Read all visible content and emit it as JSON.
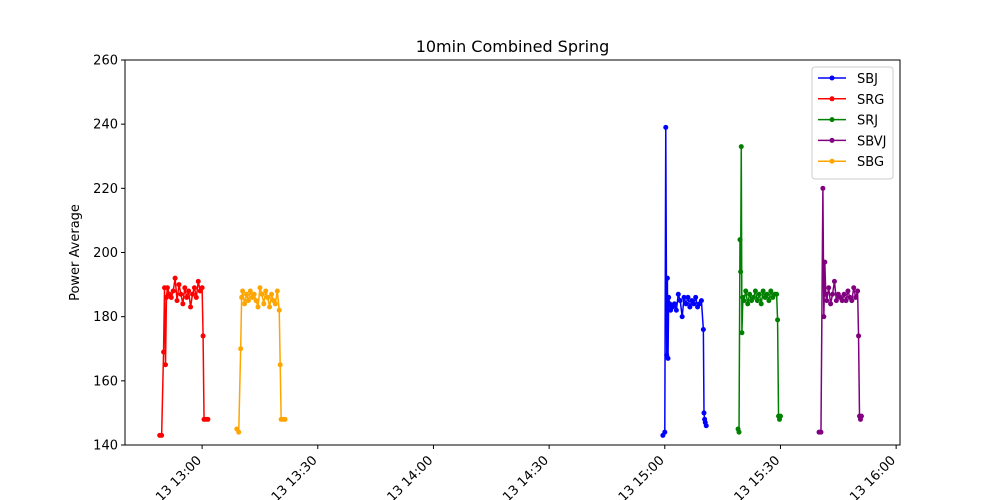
{
  "chart_data": {
    "type": "line",
    "title": "10min Combined Spring",
    "xlabel": "",
    "ylabel": "Power Average",
    "ylim": [
      140,
      260
    ],
    "xlim": [
      "2024-05-13 12:40",
      "2024-05-13 16:01"
    ],
    "yticks": [
      140,
      160,
      180,
      200,
      220,
      240,
      260
    ],
    "xticks": [
      {
        "t": "13:00",
        "label": "13 13:00"
      },
      {
        "t": "13:30",
        "label": "13 13:30"
      },
      {
        "t": "14:00",
        "label": "13 14:00"
      },
      {
        "t": "14:30",
        "label": "13 14:30"
      },
      {
        "t": "15:00",
        "label": "13 15:00"
      },
      {
        "t": "15:30",
        "label": "13 15:30"
      },
      {
        "t": "16:00",
        "label": "13 16:00"
      }
    ],
    "grid": false,
    "legend_position": "top-right",
    "series": [
      {
        "name": "SBJ",
        "color": "#0000ff",
        "x": [
          "14:59:30",
          "15:00:00",
          "15:00:15",
          "15:00:30",
          "15:00:40",
          "15:00:50",
          "15:01:00",
          "15:01:15",
          "15:01:30",
          "15:02:00",
          "15:02:30",
          "15:03:00",
          "15:03:30",
          "15:04:00",
          "15:04:30",
          "15:05:00",
          "15:05:30",
          "15:06:00",
          "15:06:30",
          "15:07:00",
          "15:07:30",
          "15:08:00",
          "15:08:30",
          "15:09:00",
          "15:09:30",
          "15:10:00",
          "15:10:10",
          "15:10:20",
          "15:10:30",
          "15:10:45"
        ],
        "values": [
          143,
          144,
          239,
          168,
          192,
          167,
          186,
          184,
          182,
          183,
          184,
          182,
          187,
          185,
          180,
          186,
          184,
          186,
          183,
          185,
          184,
          186,
          183,
          184,
          185,
          176,
          150,
          148,
          147,
          146
        ]
      },
      {
        "name": "SRG",
        "color": "#ff0000",
        "x": [
          "12:49:00",
          "12:49:30",
          "12:50:00",
          "12:50:15",
          "12:50:30",
          "12:50:45",
          "12:51:00",
          "12:51:30",
          "12:52:00",
          "12:52:30",
          "12:53:00",
          "12:53:30",
          "12:54:00",
          "12:54:30",
          "12:55:00",
          "12:55:30",
          "12:56:00",
          "12:56:30",
          "12:57:00",
          "12:57:30",
          "12:58:00",
          "12:58:30",
          "12:59:00",
          "12:59:30",
          "13:00:00",
          "13:00:15",
          "13:00:30",
          "13:01:00",
          "13:01:30"
        ],
        "values": [
          143,
          143,
          169,
          189,
          165,
          186,
          189,
          187,
          186,
          188,
          192,
          185,
          190,
          187,
          184,
          189,
          186,
          188,
          183,
          187,
          189,
          186,
          191,
          188,
          189,
          174,
          148,
          148,
          148
        ]
      },
      {
        "name": "SRJ",
        "color": "#008000",
        "x": [
          "15:19:00",
          "15:19:15",
          "15:19:30",
          "15:19:40",
          "15:19:50",
          "15:20:00",
          "15:20:15",
          "15:20:30",
          "15:21:00",
          "15:21:30",
          "15:22:00",
          "15:22:30",
          "15:23:00",
          "15:23:30",
          "15:24:00",
          "15:24:30",
          "15:25:00",
          "15:25:30",
          "15:26:00",
          "15:26:30",
          "15:27:00",
          "15:27:30",
          "15:28:00",
          "15:28:30",
          "15:29:00",
          "15:29:15",
          "15:29:30",
          "15:29:45",
          "15:30:00"
        ],
        "values": [
          145,
          144,
          204,
          194,
          233,
          175,
          186,
          185,
          188,
          184,
          187,
          185,
          186,
          188,
          185,
          187,
          184,
          188,
          186,
          187,
          185,
          188,
          186,
          187,
          187,
          179,
          149,
          148,
          149
        ]
      },
      {
        "name": "SBVJ",
        "color": "#800080",
        "x": [
          "15:40:00",
          "15:40:30",
          "15:41:00",
          "15:41:15",
          "15:41:30",
          "15:41:45",
          "15:42:00",
          "15:42:30",
          "15:43:00",
          "15:43:30",
          "15:44:00",
          "15:44:30",
          "15:45:00",
          "15:45:30",
          "15:46:00",
          "15:46:30",
          "15:47:00",
          "15:47:30",
          "15:48:00",
          "15:48:30",
          "15:49:00",
          "15:49:30",
          "15:50:00",
          "15:50:15",
          "15:50:30",
          "15:50:45",
          "15:51:00"
        ],
        "values": [
          144,
          144,
          220,
          180,
          197,
          187,
          185,
          189,
          184,
          187,
          191,
          185,
          187,
          186,
          185,
          187,
          185,
          188,
          186,
          185,
          189,
          186,
          188,
          174,
          149,
          148,
          149
        ]
      },
      {
        "name": "SBG",
        "color": "#ffa500",
        "x": [
          "13:09:00",
          "13:09:30",
          "13:10:00",
          "13:10:15",
          "13:10:30",
          "13:11:00",
          "13:11:30",
          "13:12:00",
          "13:12:30",
          "13:13:00",
          "13:13:30",
          "13:14:00",
          "13:14:30",
          "13:15:00",
          "13:15:30",
          "13:16:00",
          "13:16:30",
          "13:17:00",
          "13:17:30",
          "13:18:00",
          "13:18:30",
          "13:19:00",
          "13:19:30",
          "13:20:00",
          "13:20:15",
          "13:20:30",
          "13:21:00",
          "13:21:30"
        ],
        "values": [
          145,
          144,
          170,
          186,
          188,
          184,
          187,
          185,
          188,
          186,
          187,
          185,
          183,
          189,
          187,
          184,
          188,
          186,
          183,
          187,
          185,
          184,
          188,
          182,
          165,
          148,
          148,
          148
        ]
      }
    ]
  }
}
